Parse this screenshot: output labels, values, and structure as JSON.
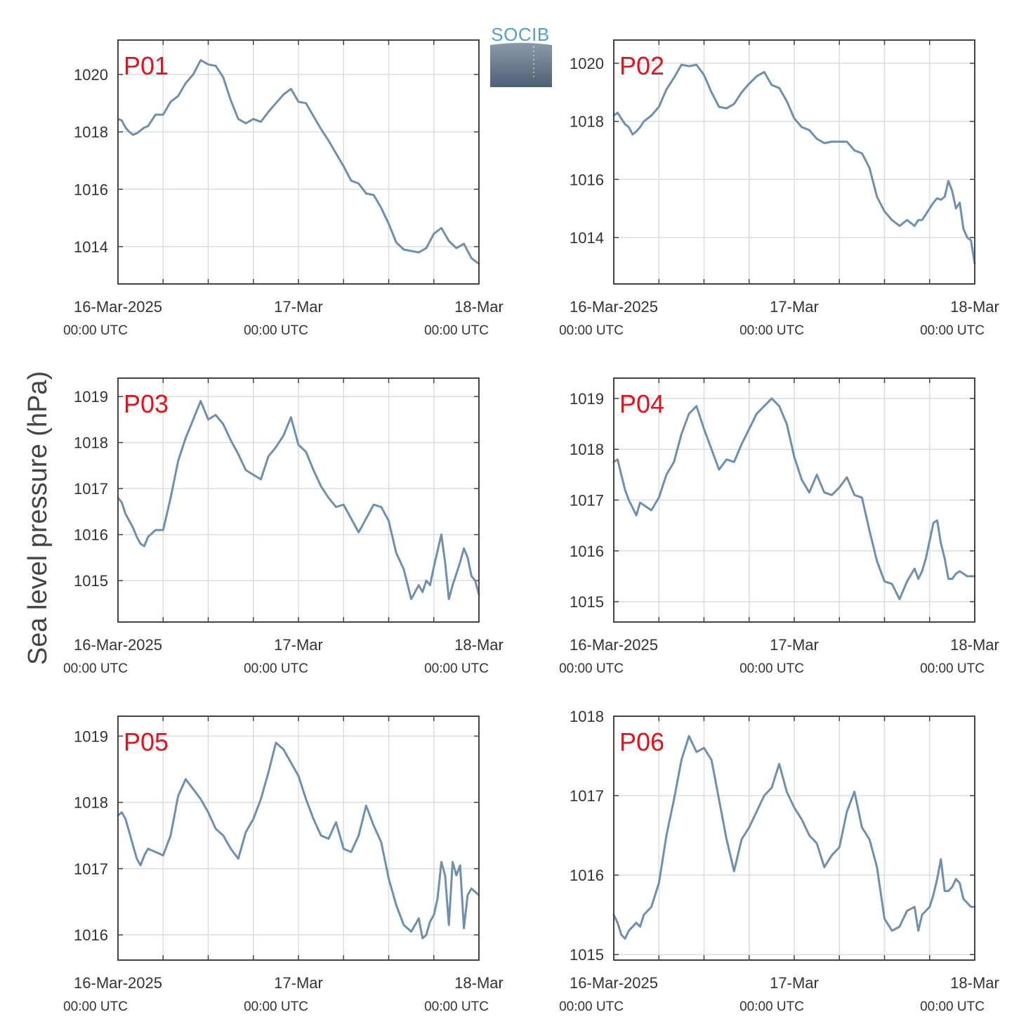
{
  "figure": {
    "ylabel": "Sea level pressure (hPa)",
    "logo": "SOCIB",
    "colors": {
      "line": "#6e8fae",
      "panel_label": "#e8101a",
      "grid": "#dddddd",
      "frame": "#444444"
    }
  },
  "chart_data": [
    {
      "type": "line",
      "title": "P01",
      "ylabel": "Sea level pressure (hPa)",
      "x_ticks": [
        "16-Mar-2025",
        "17-Mar",
        "18-Mar"
      ],
      "x_tick_sub": [
        "00:00 UTC",
        "00:00 UTC",
        "00:00 UTC"
      ],
      "xlim_hours": [
        0,
        48
      ],
      "ylim": [
        1012.7,
        1021.2
      ],
      "yticks": [
        1014,
        1016,
        1018,
        1020
      ],
      "series": [
        {
          "x_hours": [
            0,
            0.5,
            1,
            1.5,
            2,
            2.5,
            3,
            3.5,
            4,
            5,
            6,
            7,
            8,
            9,
            10,
            11,
            12,
            13,
            14,
            15,
            16,
            17,
            18,
            19,
            20,
            21,
            22,
            23,
            24,
            25,
            26,
            27,
            28,
            29,
            30,
            31,
            32,
            33,
            34,
            35,
            36,
            37,
            38,
            39,
            40,
            41,
            42,
            43,
            44,
            45,
            46,
            47,
            48
          ],
          "values": [
            1018.45,
            1018.4,
            1018.15,
            1018.0,
            1017.9,
            1017.95,
            1018.05,
            1018.15,
            1018.2,
            1018.6,
            1018.6,
            1019.05,
            1019.25,
            1019.7,
            1020.0,
            1020.5,
            1020.35,
            1020.3,
            1019.9,
            1019.1,
            1018.45,
            1018.3,
            1018.45,
            1018.35,
            1018.7,
            1019.0,
            1019.3,
            1019.5,
            1019.05,
            1019.0,
            1018.55,
            1018.1,
            1017.7,
            1017.25,
            1016.8,
            1016.3,
            1016.2,
            1015.85,
            1015.8,
            1015.35,
            1014.8,
            1014.15,
            1013.9,
            1013.85,
            1013.8,
            1013.95,
            1014.45,
            1014.65,
            1014.2,
            1013.95,
            1014.1,
            1013.6,
            1013.4
          ]
        }
      ]
    },
    {
      "type": "line",
      "title": "P02",
      "ylabel": "Sea level pressure (hPa)",
      "x_ticks": [
        "16-Mar-2025",
        "17-Mar",
        "18-Mar"
      ],
      "x_tick_sub": [
        "00:00 UTC",
        "00:00 UTC",
        "00:00 UTC"
      ],
      "xlim_hours": [
        0,
        48
      ],
      "ylim": [
        1012.4,
        1020.8
      ],
      "yticks": [
        1014,
        1016,
        1018,
        1020
      ],
      "series": [
        {
          "x_hours": [
            0,
            0.5,
            1,
            1.5,
            2,
            2.5,
            3,
            3.5,
            4,
            5,
            6,
            7,
            8,
            9,
            10,
            11,
            12,
            13,
            14,
            15,
            16,
            17,
            18,
            19,
            20,
            21,
            22,
            23,
            24,
            25,
            26,
            27,
            28,
            29,
            30,
            31,
            32,
            33,
            34,
            35,
            36,
            37,
            38,
            39,
            40,
            40.5,
            41,
            41.5,
            42,
            42.5,
            43,
            43.5,
            44,
            44.5,
            45,
            45.5,
            46,
            46.5,
            47,
            47.5,
            48
          ],
          "values": [
            1018.2,
            1018.3,
            1018.1,
            1017.9,
            1017.8,
            1017.55,
            1017.65,
            1017.8,
            1018.0,
            1018.2,
            1018.5,
            1019.1,
            1019.5,
            1019.95,
            1019.9,
            1019.95,
            1019.6,
            1019.0,
            1018.5,
            1018.45,
            1018.6,
            1019.0,
            1019.3,
            1019.55,
            1019.7,
            1019.25,
            1019.15,
            1018.7,
            1018.1,
            1017.8,
            1017.7,
            1017.4,
            1017.25,
            1017.3,
            1017.3,
            1017.3,
            1017.0,
            1016.9,
            1016.4,
            1015.4,
            1014.9,
            1014.6,
            1014.4,
            1014.6,
            1014.4,
            1014.6,
            1014.6,
            1014.8,
            1015.0,
            1015.2,
            1015.35,
            1015.3,
            1015.4,
            1015.95,
            1015.6,
            1015.0,
            1015.2,
            1014.3,
            1014.0,
            1013.9,
            1013.1
          ]
        }
      ]
    },
    {
      "type": "line",
      "title": "P03",
      "ylabel": "Sea level pressure (hPa)",
      "x_ticks": [
        "16-Mar-2025",
        "17-Mar",
        "18-Mar"
      ],
      "x_tick_sub": [
        "00:00 UTC",
        "00:00 UTC",
        "00:00 UTC"
      ],
      "xlim_hours": [
        0,
        48
      ],
      "ylim": [
        1014.1,
        1019.4
      ],
      "yticks": [
        1015,
        1016,
        1017,
        1018,
        1019
      ],
      "series": [
        {
          "x_hours": [
            0,
            0.5,
            1,
            1.5,
            2,
            2.5,
            3,
            3.5,
            4,
            5,
            6,
            7,
            8,
            9,
            10,
            11,
            12,
            13,
            14,
            15,
            16,
            17,
            18,
            19,
            20,
            21,
            22,
            23,
            24,
            25,
            26,
            27,
            28,
            29,
            30,
            31,
            32,
            33,
            34,
            35,
            36,
            37,
            38,
            39,
            40,
            40.5,
            41,
            41.5,
            42,
            42.5,
            43,
            43.5,
            44,
            44.5,
            45,
            45.5,
            46,
            46.5,
            47,
            47.5,
            48
          ],
          "values": [
            1016.8,
            1016.7,
            1016.45,
            1016.3,
            1016.15,
            1015.95,
            1015.8,
            1015.75,
            1015.95,
            1016.1,
            1016.1,
            1016.8,
            1017.6,
            1018.1,
            1018.5,
            1018.9,
            1018.5,
            1018.6,
            1018.4,
            1018.05,
            1017.75,
            1017.4,
            1017.3,
            1017.2,
            1017.7,
            1017.9,
            1018.15,
            1018.55,
            1017.95,
            1017.8,
            1017.4,
            1017.05,
            1016.8,
            1016.6,
            1016.65,
            1016.35,
            1016.05,
            1016.35,
            1016.65,
            1016.6,
            1016.3,
            1015.6,
            1015.25,
            1014.6,
            1014.9,
            1014.75,
            1015.0,
            1014.9,
            1015.3,
            1015.65,
            1016.0,
            1015.4,
            1014.6,
            1014.9,
            1015.15,
            1015.4,
            1015.7,
            1015.5,
            1015.1,
            1015.0,
            1014.7
          ]
        }
      ]
    },
    {
      "type": "line",
      "title": "P04",
      "ylabel": "Sea level pressure (hPa)",
      "x_ticks": [
        "16-Mar-2025",
        "17-Mar",
        "18-Mar"
      ],
      "x_tick_sub": [
        "00:00 UTC",
        "00:00 UTC",
        "00:00 UTC"
      ],
      "xlim_hours": [
        0,
        48
      ],
      "ylim": [
        1014.6,
        1019.4
      ],
      "yticks": [
        1015,
        1016,
        1017,
        1018,
        1019
      ],
      "series": [
        {
          "x_hours": [
            0,
            0.5,
            1,
            1.5,
            2,
            2.5,
            3,
            3.5,
            4,
            5,
            6,
            7,
            8,
            9,
            10,
            11,
            12,
            13,
            14,
            15,
            16,
            17,
            18,
            19,
            20,
            21,
            22,
            23,
            24,
            25,
            26,
            27,
            28,
            29,
            30,
            31,
            32,
            33,
            34,
            35,
            36,
            37,
            38,
            39,
            40,
            40.5,
            41,
            41.5,
            42,
            42.5,
            43,
            43.5,
            44,
            44.5,
            45,
            45.5,
            46,
            46.5,
            47,
            47.5,
            48
          ],
          "values": [
            1017.75,
            1017.8,
            1017.5,
            1017.2,
            1017.0,
            1016.85,
            1016.7,
            1016.95,
            1016.9,
            1016.8,
            1017.05,
            1017.5,
            1017.75,
            1018.3,
            1018.7,
            1018.85,
            1018.4,
            1018.0,
            1017.6,
            1017.8,
            1017.75,
            1018.1,
            1018.4,
            1018.7,
            1018.85,
            1019.0,
            1018.85,
            1018.5,
            1017.85,
            1017.4,
            1017.15,
            1017.5,
            1017.15,
            1017.1,
            1017.25,
            1017.45,
            1017.1,
            1017.05,
            1016.4,
            1015.8,
            1015.4,
            1015.35,
            1015.05,
            1015.4,
            1015.65,
            1015.45,
            1015.6,
            1015.85,
            1016.2,
            1016.55,
            1016.6,
            1016.15,
            1015.85,
            1015.45,
            1015.45,
            1015.55,
            1015.6,
            1015.55,
            1015.5,
            1015.5,
            1015.5
          ]
        }
      ]
    },
    {
      "type": "line",
      "title": "P05",
      "ylabel": "Sea level pressure (hPa)",
      "x_ticks": [
        "16-Mar-2025",
        "17-Mar",
        "18-Mar"
      ],
      "x_tick_sub": [
        "00:00 UTC",
        "00:00 UTC",
        "00:00 UTC"
      ],
      "xlim_hours": [
        0,
        48
      ],
      "ylim": [
        1015.62,
        1019.3
      ],
      "yticks": [
        1016,
        1017,
        1018,
        1019
      ],
      "series": [
        {
          "x_hours": [
            0,
            0.5,
            1,
            1.5,
            2,
            2.5,
            3,
            3.5,
            4,
            5,
            6,
            7,
            8,
            9,
            10,
            11,
            12,
            13,
            14,
            15,
            16,
            17,
            18,
            19,
            20,
            21,
            22,
            23,
            24,
            25,
            26,
            27,
            28,
            29,
            30,
            31,
            32,
            33,
            34,
            35,
            36,
            37,
            38,
            39,
            40,
            40.5,
            41,
            41.5,
            42,
            42.5,
            43,
            43.5,
            44,
            44.5,
            45,
            45.5,
            46,
            46.5,
            47,
            47.5,
            48
          ],
          "values": [
            1017.8,
            1017.85,
            1017.75,
            1017.55,
            1017.35,
            1017.15,
            1017.05,
            1017.2,
            1017.3,
            1017.25,
            1017.2,
            1017.5,
            1018.1,
            1018.35,
            1018.2,
            1018.05,
            1017.85,
            1017.6,
            1017.5,
            1017.3,
            1017.15,
            1017.55,
            1017.75,
            1018.05,
            1018.45,
            1018.9,
            1018.8,
            1018.6,
            1018.4,
            1018.05,
            1017.75,
            1017.5,
            1017.45,
            1017.7,
            1017.3,
            1017.25,
            1017.5,
            1017.95,
            1017.65,
            1017.4,
            1016.85,
            1016.45,
            1016.15,
            1016.05,
            1016.25,
            1015.95,
            1016.0,
            1016.2,
            1016.3,
            1016.55,
            1017.1,
            1016.9,
            1016.15,
            1017.1,
            1016.9,
            1017.05,
            1016.1,
            1016.6,
            1016.7,
            1016.65,
            1016.6
          ]
        }
      ]
    },
    {
      "type": "line",
      "title": "P06",
      "ylabel": "Sea level pressure (hPa)",
      "x_ticks": [
        "16-Mar-2025",
        "17-Mar",
        "18-Mar"
      ],
      "x_tick_sub": [
        "00:00 UTC",
        "00:00 UTC",
        "00:00 UTC"
      ],
      "xlim_hours": [
        0,
        48
      ],
      "ylim": [
        1014.93,
        1018.0
      ],
      "yticks": [
        1015,
        1016,
        1017,
        1018
      ],
      "series": [
        {
          "x_hours": [
            0,
            0.5,
            1,
            1.5,
            2,
            2.5,
            3,
            3.5,
            4,
            5,
            6,
            7,
            8,
            9,
            10,
            11,
            12,
            13,
            14,
            15,
            16,
            17,
            18,
            19,
            20,
            21,
            22,
            23,
            24,
            25,
            26,
            27,
            28,
            29,
            30,
            31,
            32,
            33,
            34,
            35,
            36,
            37,
            38,
            39,
            40,
            40.5,
            41,
            41.5,
            42,
            42.5,
            43,
            43.5,
            44,
            44.5,
            45,
            45.5,
            46,
            46.5,
            47,
            47.5,
            48
          ],
          "values": [
            1015.5,
            1015.4,
            1015.25,
            1015.2,
            1015.3,
            1015.35,
            1015.4,
            1015.35,
            1015.5,
            1015.6,
            1015.9,
            1016.5,
            1016.95,
            1017.45,
            1017.75,
            1017.55,
            1017.6,
            1017.45,
            1016.95,
            1016.45,
            1016.05,
            1016.45,
            1016.6,
            1016.8,
            1017.0,
            1017.1,
            1017.4,
            1017.05,
            1016.85,
            1016.7,
            1016.5,
            1016.4,
            1016.1,
            1016.25,
            1016.35,
            1016.8,
            1017.05,
            1016.6,
            1016.45,
            1016.1,
            1015.45,
            1015.3,
            1015.35,
            1015.55,
            1015.6,
            1015.3,
            1015.5,
            1015.55,
            1015.6,
            1015.75,
            1015.95,
            1016.2,
            1015.8,
            1015.8,
            1015.85,
            1015.95,
            1015.9,
            1015.7,
            1015.65,
            1015.6,
            1015.6
          ]
        }
      ]
    }
  ]
}
